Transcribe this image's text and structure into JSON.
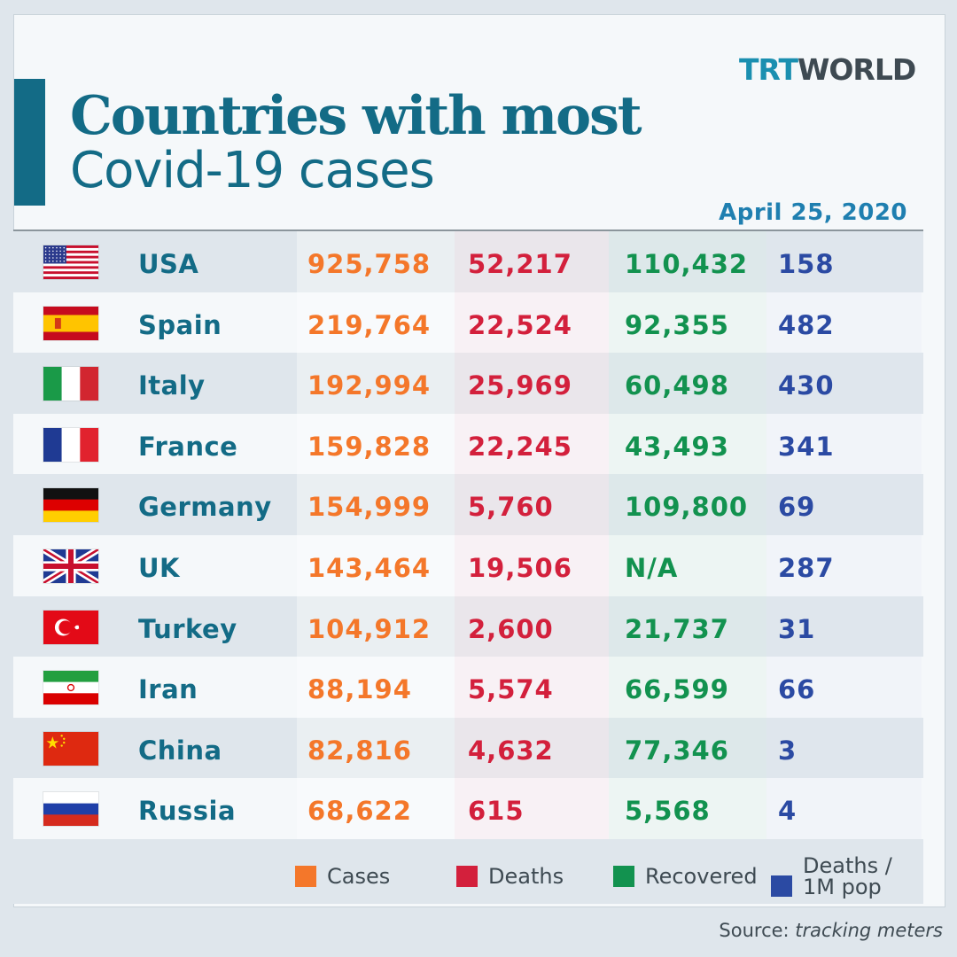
{
  "logo": {
    "part1": "TRT",
    "part2": "WORLD"
  },
  "title": {
    "line1": "Countries with most",
    "line2": "Covid-19 cases"
  },
  "date": "April 25, 2020",
  "colors": {
    "cases": "#f4772a",
    "deaths": "#d3203c",
    "recovered": "#12924f",
    "deaths_per_million": "#2b4aa3",
    "title": "#136b86",
    "date": "#1f7fb0"
  },
  "rows": [
    {
      "flag": "usa-flag-icon",
      "country": "USA",
      "cases": "925,758",
      "deaths": "52,217",
      "recovered": "110,432",
      "deaths_per_million": "158"
    },
    {
      "flag": "spain-flag-icon",
      "country": "Spain",
      "cases": "219,764",
      "deaths": "22,524",
      "recovered": "92,355",
      "deaths_per_million": "482"
    },
    {
      "flag": "italy-flag-icon",
      "country": "Italy",
      "cases": "192,994",
      "deaths": "25,969",
      "recovered": "60,498",
      "deaths_per_million": "430"
    },
    {
      "flag": "france-flag-icon",
      "country": "France",
      "cases": "159,828",
      "deaths": "22,245",
      "recovered": "43,493",
      "deaths_per_million": "341"
    },
    {
      "flag": "germany-flag-icon",
      "country": "Germany",
      "cases": "154,999",
      "deaths": "5,760",
      "recovered": "109,800",
      "deaths_per_million": "69"
    },
    {
      "flag": "uk-flag-icon",
      "country": "UK",
      "cases": "143,464",
      "deaths": "19,506",
      "recovered": "N/A",
      "deaths_per_million": "287"
    },
    {
      "flag": "turkey-flag-icon",
      "country": "Turkey",
      "cases": "104,912",
      "deaths": "2,600",
      "recovered": "21,737",
      "deaths_per_million": "31"
    },
    {
      "flag": "iran-flag-icon",
      "country": "Iran",
      "cases": "88,194",
      "deaths": "5,574",
      "recovered": "66,599",
      "deaths_per_million": "66"
    },
    {
      "flag": "china-flag-icon",
      "country": "China",
      "cases": "82,816",
      "deaths": "4,632",
      "recovered": "77,346",
      "deaths_per_million": "3"
    },
    {
      "flag": "russia-flag-icon",
      "country": "Russia",
      "cases": "68,622",
      "deaths": "615",
      "recovered": "5,568",
      "deaths_per_million": "4"
    }
  ],
  "legend": {
    "cases": "Cases",
    "deaths": "Deaths",
    "recovered": "Recovered",
    "deaths_per_million_line1": "Deaths /",
    "deaths_per_million_line2": "1M pop"
  },
  "source": {
    "label": "Source:",
    "value": "tracking meters"
  }
}
